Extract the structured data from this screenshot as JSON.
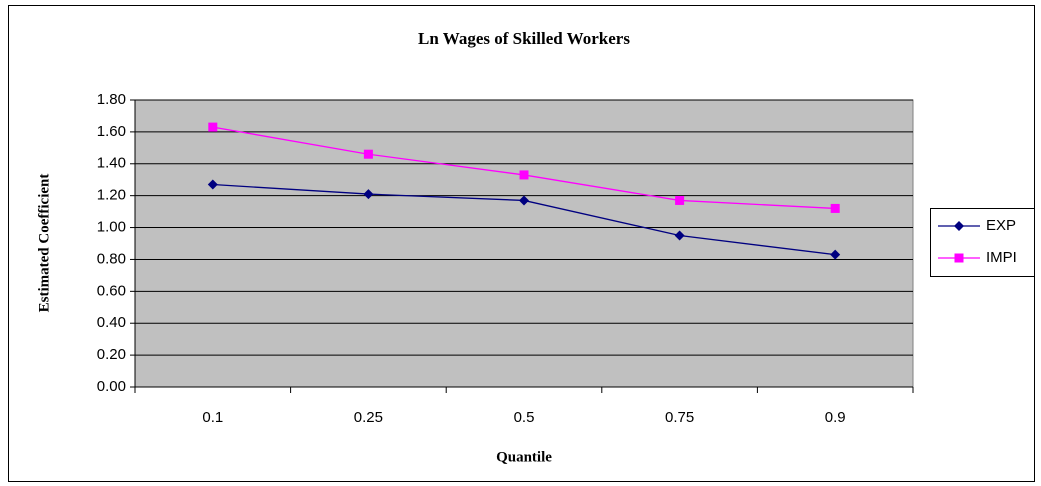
{
  "chart_data": {
    "type": "line",
    "title": "Ln Wages of Skilled Workers",
    "x_label": "Quantile",
    "y_label": "Estimated Coefficient",
    "categories": [
      "0.1",
      "0.25",
      "0.5",
      "0.75",
      "0.9"
    ],
    "series": [
      {
        "name": "EXP",
        "color": "#000080",
        "marker": "diamond",
        "values": [
          1.27,
          1.21,
          1.17,
          0.95,
          0.83
        ]
      },
      {
        "name": "IMPI",
        "color": "#ff00ff",
        "marker": "square",
        "values": [
          1.63,
          1.46,
          1.33,
          1.17,
          1.12
        ]
      }
    ],
    "ylim": [
      0,
      1.8
    ],
    "yticks": [
      {
        "value": 0,
        "label": "0.00"
      },
      {
        "value": 0.2,
        "label": "0.20"
      },
      {
        "value": 0.4,
        "label": "0.40"
      },
      {
        "value": 0.6,
        "label": "0.60"
      },
      {
        "value": 0.8,
        "label": "0.80"
      },
      {
        "value": 1.0,
        "label": "1.00"
      },
      {
        "value": 1.2,
        "label": "1.20"
      },
      {
        "value": 1.4,
        "label": "1.40"
      },
      {
        "value": 1.6,
        "label": "1.60"
      },
      {
        "value": 1.8,
        "label": "1.80"
      }
    ],
    "grid": true,
    "legend": "right"
  }
}
